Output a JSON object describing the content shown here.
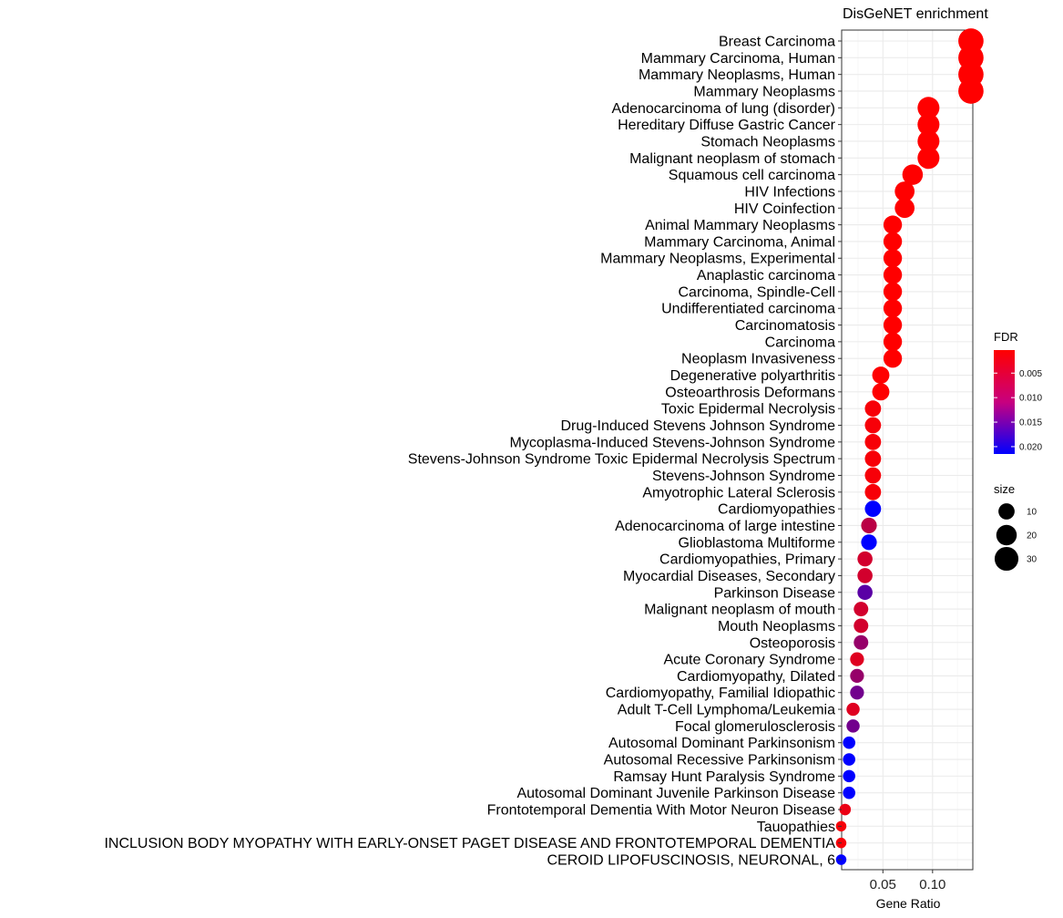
{
  "chart_data": {
    "type": "scatter",
    "title": "DisGeNET enrichment",
    "xlabel": "Gene Ratio",
    "xlim": [
      0.0085,
      0.1405
    ],
    "xticks": [
      0.05,
      0.1
    ],
    "xtick_labels": [
      "0.05",
      "0.10"
    ],
    "grid": true,
    "categories": [
      "Breast Carcinoma",
      "Mammary Carcinoma, Human",
      "Mammary Neoplasms, Human",
      "Mammary Neoplasms",
      "Adenocarcinoma of lung (disorder)",
      "Hereditary Diffuse Gastric Cancer",
      "Stomach Neoplasms",
      "Malignant neoplasm of stomach",
      "Squamous cell carcinoma",
      "HIV Infections",
      "HIV Coinfection",
      "Animal Mammary Neoplasms",
      "Mammary Carcinoma, Animal",
      "Mammary Neoplasms, Experimental",
      "Anaplastic carcinoma",
      "Carcinoma, Spindle-Cell",
      "Undifferentiated carcinoma",
      "Carcinomatosis",
      "Carcinoma",
      "Neoplasm Invasiveness",
      "Degenerative polyarthritis",
      "Osteoarthrosis Deformans",
      "Toxic Epidermal Necrolysis",
      "Drug-Induced Stevens Johnson Syndrome",
      "Mycoplasma-Induced Stevens-Johnson Syndrome",
      "Stevens-Johnson Syndrome Toxic Epidermal Necrolysis Spectrum",
      "Stevens-Johnson Syndrome",
      "Amyotrophic Lateral Sclerosis",
      "Cardiomyopathies",
      "Adenocarcinoma of large intestine",
      "Glioblastoma Multiforme",
      "Cardiomyopathies, Primary",
      "Myocardial Diseases, Secondary",
      "Parkinson Disease",
      "Malignant neoplasm of mouth",
      "Mouth Neoplasms",
      "Osteoporosis",
      "Acute Coronary Syndrome",
      "Cardiomyopathy, Dilated",
      "Cardiomyopathy, Familial Idiopathic",
      "Adult T-Cell Lymphoma/Leukemia",
      "Focal glomerulosclerosis",
      "Autosomal Dominant Parkinsonism",
      "Autosomal Recessive Parkinsonism",
      "Ramsay Hunt Paralysis Syndrome",
      "Autosomal Dominant Juvenile Parkinson Disease",
      "Frontotemporal Dementia With Motor Neuron Disease",
      "Tauopathies",
      "INCLUSION BODY MYOPATHY WITH EARLY-ONSET PAGET DISEASE AND FRONTOTEMPORAL DEMENTIA",
      "CEROID LIPOFUSCINOSIS, NEURONAL, 6"
    ],
    "gene_ratio": [
      0.1386,
      0.1386,
      0.1386,
      0.1386,
      0.0959,
      0.0959,
      0.0959,
      0.0959,
      0.0799,
      0.0719,
      0.0719,
      0.0599,
      0.0599,
      0.0599,
      0.0599,
      0.0599,
      0.0599,
      0.0599,
      0.0599,
      0.0599,
      0.0479,
      0.0479,
      0.04,
      0.04,
      0.04,
      0.04,
      0.04,
      0.04,
      0.04,
      0.036,
      0.036,
      0.032,
      0.032,
      0.032,
      0.028,
      0.028,
      0.028,
      0.024,
      0.024,
      0.024,
      0.02,
      0.02,
      0.016,
      0.016,
      0.016,
      0.016,
      0.012,
      0.008,
      0.008,
      0.008
    ],
    "size": [
      35,
      35,
      35,
      35,
      24,
      24,
      24,
      24,
      20,
      18,
      18,
      15,
      15,
      15,
      15,
      15,
      15,
      15,
      15,
      15,
      12,
      12,
      10,
      10,
      10,
      10,
      10,
      10,
      10,
      9,
      9,
      8,
      8,
      8,
      7,
      7,
      7,
      6,
      6,
      6,
      5,
      5,
      4,
      4,
      4,
      4,
      3,
      2,
      2,
      2
    ],
    "fdr": [
      0.0003,
      0.0003,
      0.0003,
      0.0003,
      0.0003,
      0.0003,
      0.0003,
      0.0003,
      0.0003,
      0.0003,
      0.0003,
      0.0003,
      0.0003,
      0.0003,
      0.0003,
      0.0003,
      0.0003,
      0.0003,
      0.0003,
      0.0003,
      0.0004,
      0.0004,
      0.001,
      0.001,
      0.001,
      0.001,
      0.001,
      0.001,
      0.0215,
      0.006,
      0.0215,
      0.004,
      0.004,
      0.014,
      0.004,
      0.004,
      0.009,
      0.003,
      0.009,
      0.012,
      0.003,
      0.012,
      0.0215,
      0.0215,
      0.0215,
      0.0215,
      0.002,
      0.001,
      0.001,
      0.0215
    ],
    "legend": {
      "color": {
        "title": "FDR",
        "ticks": [
          0.005,
          0.01,
          0.015,
          0.02
        ],
        "tick_labels": [
          "0.005",
          "0.010",
          "0.015",
          "0.020"
        ],
        "range": [
          0.0003,
          0.0215
        ],
        "low_color": "#ff0000",
        "high_color": "#0000ff"
      },
      "size": {
        "title": "size",
        "values": [
          10,
          20,
          30
        ],
        "labels": [
          "10",
          "20",
          "30"
        ]
      },
      "position": "right"
    }
  }
}
